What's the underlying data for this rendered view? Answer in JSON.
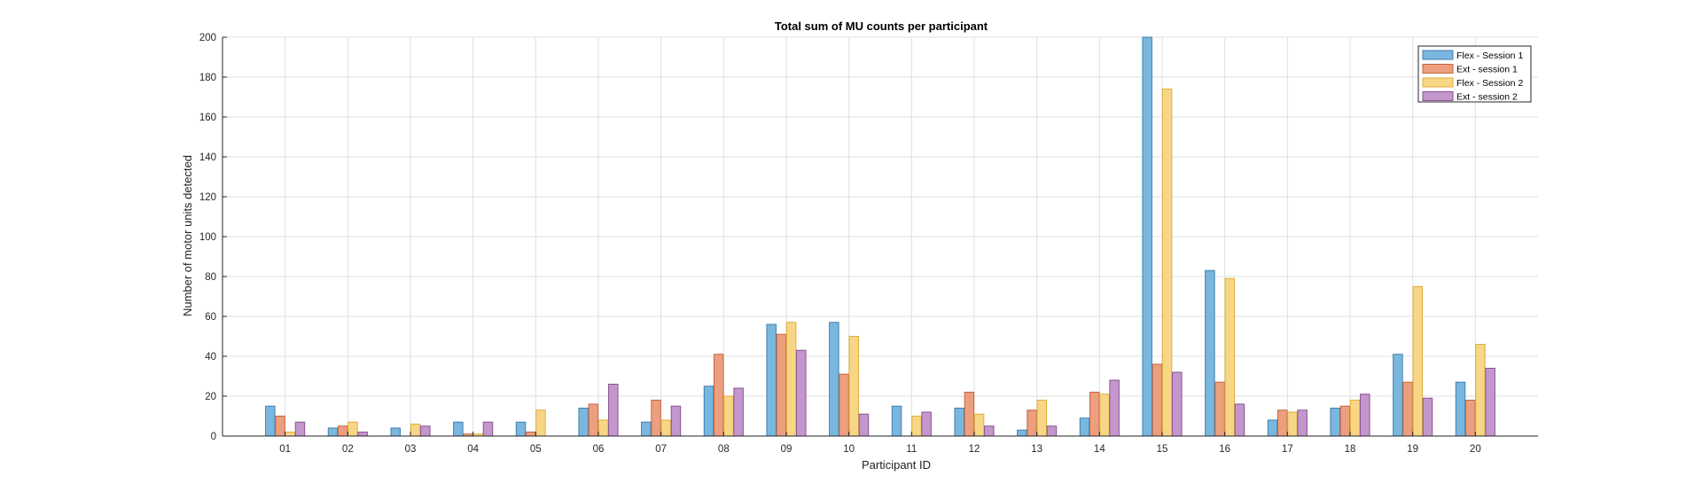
{
  "chart_data": {
    "type": "bar",
    "title": "Total sum of MU counts per participant",
    "xlabel": "Participant ID",
    "ylabel": "Number of motor units detected",
    "ylim": [
      0,
      200
    ],
    "yticks": [
      0,
      20,
      40,
      60,
      80,
      100,
      120,
      140,
      160,
      180,
      200
    ],
    "grid": true,
    "legend_position": "top-right",
    "categories": [
      "01",
      "02",
      "03",
      "04",
      "05",
      "06",
      "07",
      "08",
      "09",
      "10",
      "11",
      "12",
      "13",
      "14",
      "15",
      "16",
      "17",
      "18",
      "19",
      "20"
    ],
    "series": [
      {
        "name": "Flex - Session 1",
        "color": "#7ab7de",
        "edge": "#3f7fb0",
        "values": [
          15,
          4,
          4,
          7,
          7,
          14,
          7,
          25,
          56,
          57,
          15,
          14,
          3,
          9,
          200,
          83,
          8,
          14,
          41,
          27
        ]
      },
      {
        "name": "Ext - session 1",
        "color": "#ec9f7f",
        "edge": "#c4663f",
        "values": [
          10,
          5,
          0,
          1,
          2,
          16,
          18,
          41,
          51,
          31,
          0,
          22,
          13,
          22,
          36,
          27,
          13,
          15,
          27,
          18
        ]
      },
      {
        "name": "Flex - Session 2",
        "color": "#f7d686",
        "edge": "#e0ae3c",
        "values": [
          2,
          7,
          6,
          1,
          13,
          8,
          8,
          20,
          57,
          50,
          10,
          11,
          18,
          21,
          174,
          79,
          12,
          18,
          75,
          46
        ]
      },
      {
        "name": "Ext - session 2",
        "color": "#c497cc",
        "edge": "#8a5294",
        "values": [
          7,
          2,
          5,
          7,
          0,
          26,
          15,
          24,
          43,
          11,
          12,
          5,
          5,
          28,
          32,
          16,
          13,
          21,
          19,
          34
        ]
      }
    ]
  }
}
